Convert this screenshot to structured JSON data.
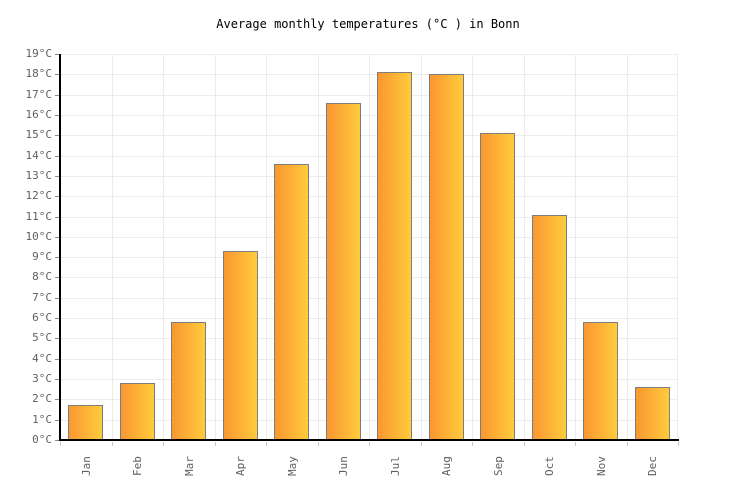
{
  "chart_data": {
    "type": "bar",
    "title": "Average monthly temperatures (°C ) in Bonn",
    "categories": [
      "Jan",
      "Feb",
      "Mar",
      "Apr",
      "May",
      "Jun",
      "Jul",
      "Aug",
      "Sep",
      "Oct",
      "Nov",
      "Dec"
    ],
    "values": [
      1.7,
      2.8,
      5.8,
      9.3,
      13.6,
      16.6,
      18.1,
      18.0,
      15.1,
      11.1,
      5.8,
      2.6
    ],
    "xlabel": "",
    "ylabel": "",
    "ylim": [
      0,
      19
    ],
    "ytick_step": 1,
    "ytick_suffix": "°C",
    "grid": true,
    "legend": false,
    "colors": {
      "bar_gradient_left": "#FA9731",
      "bar_gradient_right": "#FFCB3C",
      "bar_border": "#7D7D7D",
      "gridline": "#ECECEC",
      "axis": "#000000",
      "tick_label": "#606060",
      "title_text": "#000000",
      "background": "#FFFFFF"
    }
  }
}
